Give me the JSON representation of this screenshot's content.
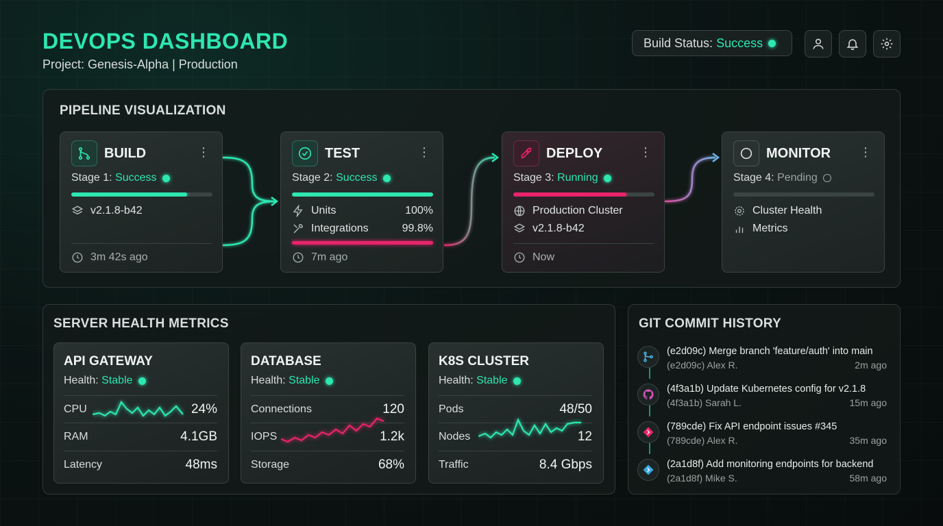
{
  "header": {
    "title": "DEVOPS DASHBOARD",
    "subtitle": "Project: Genesis-Alpha | Production",
    "build_status_label": "Build Status:",
    "build_status_value": "Success"
  },
  "pipeline": {
    "title": "PIPELINE VISUALIZATION",
    "stages": [
      {
        "name": "BUILD",
        "stage_label": "Stage 1:",
        "status": "Success",
        "progress": 0.82,
        "rows": [
          {
            "label": "v2.1.8-b42",
            "value": ""
          }
        ],
        "time": "3m 42s ago"
      },
      {
        "name": "TEST",
        "stage_label": "Stage 2:",
        "status": "Success",
        "progress": 1.0,
        "rows": [
          {
            "label": "Units",
            "value": "100%"
          },
          {
            "label": "Integrations",
            "value": "99.8%"
          }
        ],
        "time": "7m ago"
      },
      {
        "name": "DEPLOY",
        "stage_label": "Stage 3:",
        "status": "Running",
        "progress": 0.8,
        "rows": [
          {
            "label": "Production Cluster",
            "value": ""
          },
          {
            "label": "v2.1.8-b42",
            "value": ""
          }
        ],
        "time": "Now"
      },
      {
        "name": "MONITOR",
        "stage_label": "Stage 4:",
        "status": "Pending",
        "progress": 0.0,
        "rows": [
          {
            "label": "Cluster Health",
            "value": ""
          },
          {
            "label": "Metrics",
            "value": ""
          }
        ],
        "time": ""
      }
    ]
  },
  "metrics": {
    "title": "SERVER HEALTH METRICS",
    "health_label": "Health:",
    "cards": [
      {
        "name": "API GATEWAY",
        "health": "Stable",
        "rows": [
          {
            "label": "CPU",
            "value": "24%"
          },
          {
            "label": "RAM",
            "value": "4.1GB"
          },
          {
            "label": "Latency",
            "value": "48ms"
          }
        ]
      },
      {
        "name": "DATABASE",
        "health": "Stable",
        "rows": [
          {
            "label": "Connections",
            "value": "120"
          },
          {
            "label": "IOPS",
            "value": "1.2k"
          },
          {
            "label": "Storage",
            "value": "68%"
          }
        ]
      },
      {
        "name": "K8S CLUSTER",
        "health": "Stable",
        "rows": [
          {
            "label": "Pods",
            "value": "48/50"
          },
          {
            "label": "Nodes",
            "value": "12"
          },
          {
            "label": "Traffic",
            "value": "8.4 Gbps"
          }
        ]
      }
    ]
  },
  "git": {
    "title": "GIT COMMIT HISTORY",
    "commits": [
      {
        "hash": "(e2d09c)",
        "message": "Merge branch 'feature/auth' into main",
        "author": "Alex R.",
        "ago": "2m ago",
        "icon": "git-merge-icon"
      },
      {
        "hash": "(4f3a1b)",
        "message": "Update Kubernetes config for v2.1.8",
        "author": "Sarah L.",
        "ago": "15m ago",
        "icon": "github-icon"
      },
      {
        "hash": "(789cde)",
        "message": "Fix API endpoint issues #345",
        "author": "Alex R.",
        "ago": "35m ago",
        "icon": "git-diamond-icon"
      },
      {
        "hash": "(2a1d8f)",
        "message": "Add monitoring endpoints for backend",
        "author": "Mike S.",
        "ago": "58m ago",
        "icon": "git-diamond-icon"
      }
    ]
  },
  "colors": {
    "accent": "#2ee6b0",
    "danger": "#e8246a",
    "pending": "#9aa3a1"
  }
}
